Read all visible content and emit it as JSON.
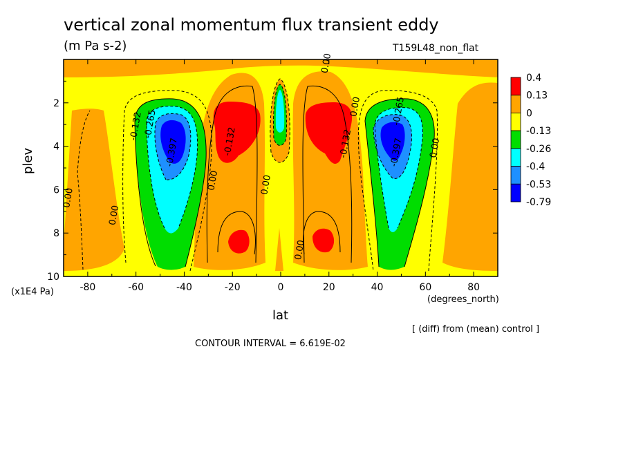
{
  "chart_data": {
    "type": "heatmap",
    "title": "vertical zonal momentum flux transient eddy",
    "units": "(m Pa s-2)",
    "run_label": "T159L48_non_flat",
    "xlabel": "lat",
    "x_units": "(degrees_north)",
    "ylabel": "plev",
    "y_scale_label": "(x1E4 Pa)",
    "diff_label": "[ (diff) from (mean) control ]",
    "contour_interval_label": "CONTOUR INTERVAL = 6.619E-02",
    "xlim": [
      -90,
      90
    ],
    "ylim": [
      10,
      0
    ],
    "x_ticks": [
      -80,
      -60,
      -40,
      -20,
      0,
      20,
      40,
      60,
      80
    ],
    "x_tick_labels": [
      "-80",
      "-60",
      "-40",
      "-20",
      "0",
      "20",
      "40",
      "60",
      "80"
    ],
    "y_ticks": [
      2,
      4,
      6,
      8,
      10
    ],
    "y_tick_labels": [
      "2",
      "4",
      "6",
      "8",
      "10"
    ],
    "colorbar": {
      "labels": [
        "0.4",
        "0.13",
        "0",
        "-0.13",
        "-0.26",
        "-0.4",
        "-0.53",
        "-0.79"
      ],
      "colors": [
        "#ff0000",
        "#ffa500",
        "#ffff00",
        "#00dd00",
        "#00ffff",
        "#1e90ff",
        "#0000ff"
      ]
    },
    "contour_labels": [
      {
        "text": "0.00",
        "lat": 20,
        "p": 0.2
      },
      {
        "text": "-0.132",
        "lat": -59,
        "p": 3.1
      },
      {
        "text": "-0.265",
        "lat": -53,
        "p": 3.0
      },
      {
        "text": "-0.397",
        "lat": -44,
        "p": 4.3
      },
      {
        "text": "-0.132",
        "lat": -20,
        "p": 3.8
      },
      {
        "text": "0.00",
        "lat": -27,
        "p": 5.6
      },
      {
        "text": "0.00",
        "lat": -5,
        "p": 5.8
      },
      {
        "text": "0.00",
        "lat": -87,
        "p": 6.4
      },
      {
        "text": "0.00",
        "lat": -68,
        "p": 7.2
      },
      {
        "text": "0.00",
        "lat": 9,
        "p": 8.8
      },
      {
        "text": "-0.132",
        "lat": 28,
        "p": 3.9
      },
      {
        "text": "0.00",
        "lat": 32,
        "p": 2.2
      },
      {
        "text": "-0.265",
        "lat": 50,
        "p": 2.4
      },
      {
        "text": "-0.397",
        "lat": 49,
        "p": 4.3
      },
      {
        "text": "0.00",
        "lat": 65,
        "p": 4.1
      }
    ]
  }
}
